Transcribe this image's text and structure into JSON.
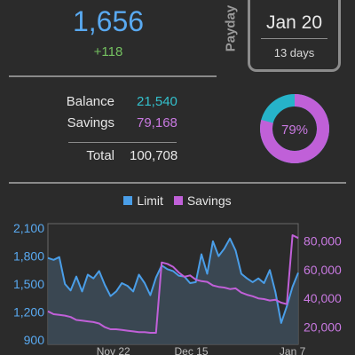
{
  "header": {
    "main_value": "1,656",
    "change": "+118"
  },
  "payday": {
    "label": "Payday",
    "date": "Jan 20",
    "countdown": "13 days"
  },
  "summary": {
    "balance_label": "Balance",
    "balance_value": "21,540",
    "savings_label": "Savings",
    "savings_value": "79,168",
    "total_label": "Total",
    "total_value": "100,708"
  },
  "donut": {
    "label": "79%",
    "fraction": 0.79,
    "colors": {
      "savings": "#c060d8",
      "balance": "#26b3c9"
    }
  },
  "colors": {
    "accent_blue": "#59a9f0",
    "positive_green": "#74c060",
    "balance_teal": "#33c0cc",
    "savings_purple": "#c879e0",
    "background": "#2b2b2b"
  },
  "chart_data": {
    "type": "line",
    "legend": [
      "Limit",
      "Savings"
    ],
    "left_axis_ticks": [
      "2,100",
      "1,800",
      "1,500",
      "1,200",
      "900"
    ],
    "right_axis_ticks": [
      "80,000",
      "60,000",
      "40,000",
      "20,000"
    ],
    "x_ticks": [
      "Nov 22",
      "Dec 15",
      "Jan 7"
    ],
    "left_ylim": [
      850,
      2150
    ],
    "right_ylim": [
      8000,
      92000
    ],
    "x_range": [
      0,
      44
    ],
    "series": [
      {
        "name": "Limit",
        "axis": "left",
        "color": "#4a9ee8",
        "fill": true,
        "x": [
          0,
          1,
          2,
          3,
          4,
          5,
          6,
          7,
          8,
          9,
          10,
          11,
          12,
          13,
          14,
          15,
          16,
          17,
          18,
          19,
          20,
          21,
          22,
          23,
          24,
          25,
          26,
          27,
          28,
          29,
          30,
          31,
          32,
          33,
          34,
          35,
          36,
          37,
          38,
          39,
          40,
          41,
          42,
          43,
          44
        ],
        "values": [
          1780,
          1760,
          1790,
          1500,
          1430,
          1580,
          1420,
          1600,
          1560,
          1640,
          1490,
          1370,
          1420,
          1510,
          1480,
          1420,
          1600,
          1510,
          1380,
          1570,
          1700,
          1660,
          1640,
          1590,
          1580,
          1510,
          1520,
          1820,
          1610,
          1960,
          1800,
          1880,
          1990,
          1860,
          1610,
          1560,
          1520,
          1560,
          1510,
          1650,
          1410,
          1080,
          1260,
          1470,
          1620
        ]
      },
      {
        "name": "Savings",
        "axis": "right",
        "color": "#c060d8",
        "fill": false,
        "x": [
          0,
          1,
          2,
          3,
          4,
          5,
          6,
          7,
          8,
          9,
          10,
          11,
          12,
          13,
          14,
          15,
          16,
          17,
          18,
          19,
          20,
          21,
          22,
          23,
          24,
          25,
          26,
          27,
          28,
          29,
          30,
          31,
          32,
          33,
          34,
          35,
          36,
          37,
          38,
          39,
          40,
          41,
          42,
          43,
          44
        ],
        "values": [
          31000,
          29000,
          28500,
          28000,
          27000,
          25000,
          24500,
          24000,
          23500,
          22500,
          20000,
          18500,
          18500,
          18000,
          17500,
          17000,
          16500,
          16500,
          16000,
          16000,
          65000,
          64000,
          62000,
          58000,
          55000,
          56000,
          53000,
          52000,
          51500,
          49000,
          48000,
          47500,
          46500,
          47000,
          44000,
          42500,
          41500,
          40000,
          39500,
          38500,
          39000,
          37000,
          36000,
          84000,
          82000
        ]
      }
    ]
  }
}
